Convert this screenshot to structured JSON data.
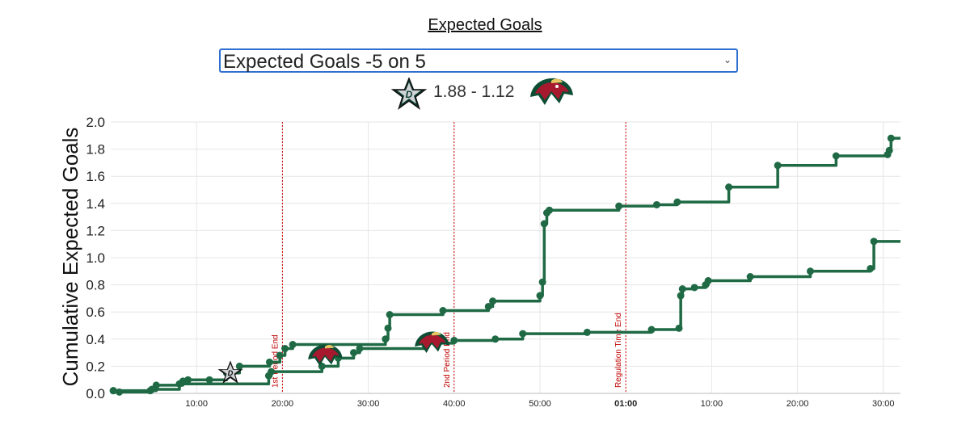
{
  "title": "Expected Goals",
  "selector": {
    "selected": "Expected Goals -5 on 5",
    "chevron": "⌄"
  },
  "scoreline": {
    "text": "1.88 - 1.12",
    "left_team_icon": "dallas-stars-logo-icon",
    "right_team_icon": "minnesota-wild-logo-icon"
  },
  "colors": {
    "line": "#1f6a45",
    "marker": "#1f6a45",
    "period_line": "#d00000",
    "grid": "#e6e6e6"
  },
  "chart_data": {
    "type": "line",
    "title": "",
    "xlabel": "",
    "ylabel": "Cumulative Expected Goals",
    "ylim": [
      0,
      2.0
    ],
    "xlim_minutes": [
      0,
      92
    ],
    "yticks": [
      "0.0",
      "0.2",
      "0.4",
      "0.6",
      "0.8",
      "1.0",
      "1.2",
      "1.4",
      "1.6",
      "1.8",
      "2.0"
    ],
    "xticks": [
      {
        "value": 10,
        "label": "10:00"
      },
      {
        "value": 20,
        "label": "20:00"
      },
      {
        "value": 30,
        "label": "30:00"
      },
      {
        "value": 40,
        "label": "40:00"
      },
      {
        "value": 50,
        "label": "50:00"
      },
      {
        "value": 60,
        "label": "01:00",
        "bold": true
      },
      {
        "value": 70,
        "label": "10:00"
      },
      {
        "value": 80,
        "label": "20:00"
      },
      {
        "value": 90,
        "label": "30:00"
      }
    ],
    "period_markers": [
      {
        "x": 20,
        "label": "1st Period End"
      },
      {
        "x": 40,
        "label": "2nd Period End"
      },
      {
        "x": 60,
        "label": "Regulation Time End"
      }
    ],
    "grid": true,
    "series": [
      {
        "icon": "dallas-stars-logo-icon",
        "end_value": 1.88,
        "points": [
          [
            0.3,
            0.02
          ],
          [
            4.6,
            0.02
          ],
          [
            5.3,
            0.06
          ],
          [
            8.4,
            0.09
          ],
          [
            9.0,
            0.1
          ],
          [
            11.5,
            0.1
          ],
          [
            13.5,
            0.15
          ],
          [
            15.0,
            0.2
          ],
          [
            18.5,
            0.23
          ],
          [
            19.7,
            0.28
          ],
          [
            20.3,
            0.33
          ],
          [
            21.2,
            0.36
          ],
          [
            32.0,
            0.4
          ],
          [
            32.3,
            0.48
          ],
          [
            32.5,
            0.58
          ],
          [
            38.7,
            0.61
          ],
          [
            44.0,
            0.64
          ],
          [
            44.5,
            0.68
          ],
          [
            50.0,
            0.72
          ],
          [
            50.3,
            0.82
          ],
          [
            50.5,
            1.25
          ],
          [
            50.8,
            1.33
          ],
          [
            51.1,
            1.35
          ],
          [
            59.2,
            1.38
          ],
          [
            63.6,
            1.39
          ],
          [
            66.0,
            1.41
          ],
          [
            72.0,
            1.52
          ],
          [
            77.7,
            1.68
          ],
          [
            84.5,
            1.75
          ],
          [
            90.5,
            1.76
          ],
          [
            90.7,
            1.79
          ],
          [
            90.9,
            1.88
          ]
        ],
        "end_x": 92
      },
      {
        "icon": "minnesota-wild-logo-icon",
        "end_value": 1.12,
        "points": [
          [
            0.3,
            0.02
          ],
          [
            1.0,
            0.01
          ],
          [
            4.8,
            0.03
          ],
          [
            8.0,
            0.07
          ],
          [
            18.4,
            0.13
          ],
          [
            18.7,
            0.16
          ],
          [
            24.6,
            0.2
          ],
          [
            26.5,
            0.26
          ],
          [
            28.3,
            0.3
          ],
          [
            29.0,
            0.33
          ],
          [
            36.8,
            0.37
          ],
          [
            40.0,
            0.39
          ],
          [
            44.8,
            0.4
          ],
          [
            48.0,
            0.44
          ],
          [
            55.5,
            0.45
          ],
          [
            63.0,
            0.47
          ],
          [
            66.2,
            0.48
          ],
          [
            66.4,
            0.72
          ],
          [
            66.6,
            0.77
          ],
          [
            68.0,
            0.78
          ],
          [
            69.3,
            0.8
          ],
          [
            69.6,
            0.83
          ],
          [
            74.5,
            0.86
          ],
          [
            81.5,
            0.9
          ],
          [
            88.5,
            0.92
          ],
          [
            88.9,
            1.12
          ]
        ],
        "end_x": 92
      }
    ]
  }
}
